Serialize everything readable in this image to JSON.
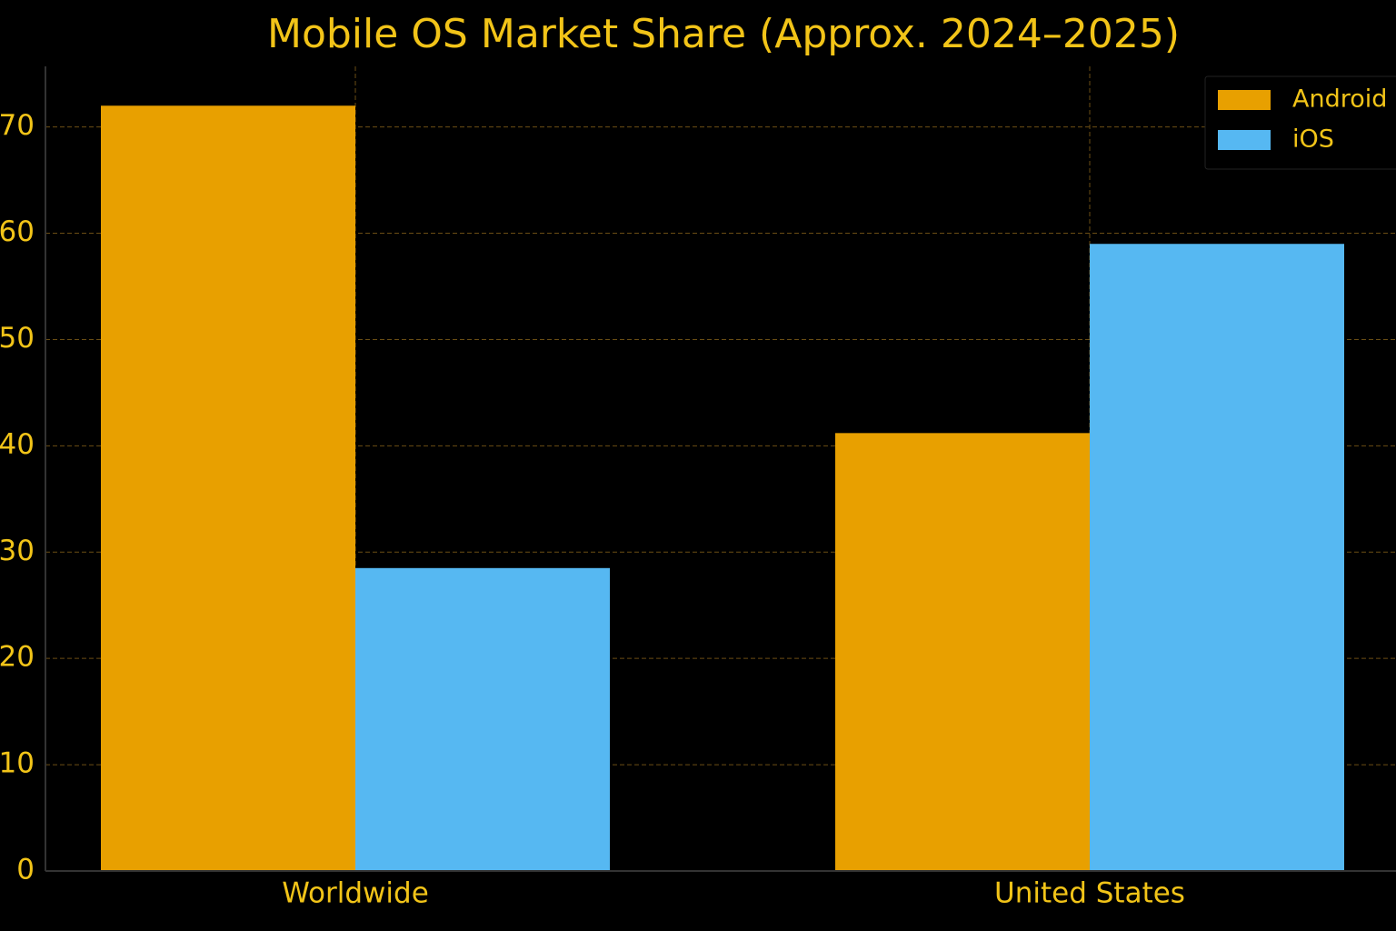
{
  "chart_data": {
    "type": "bar",
    "title": "Mobile OS Market Share (Approx. 2024–2025)",
    "categories": [
      "Worldwide",
      "United States"
    ],
    "series": [
      {
        "name": "Android",
        "color": "#e8a000",
        "values": [
          72.0,
          41.2
        ]
      },
      {
        "name": "iOS",
        "color": "#56b8f2",
        "values": [
          28.5,
          59.0
        ]
      }
    ],
    "ylim": [
      0,
      75.7
    ],
    "yticks": [
      0,
      10,
      20,
      30,
      40,
      50,
      60,
      70
    ],
    "grid": true,
    "legend": "upper right"
  }
}
